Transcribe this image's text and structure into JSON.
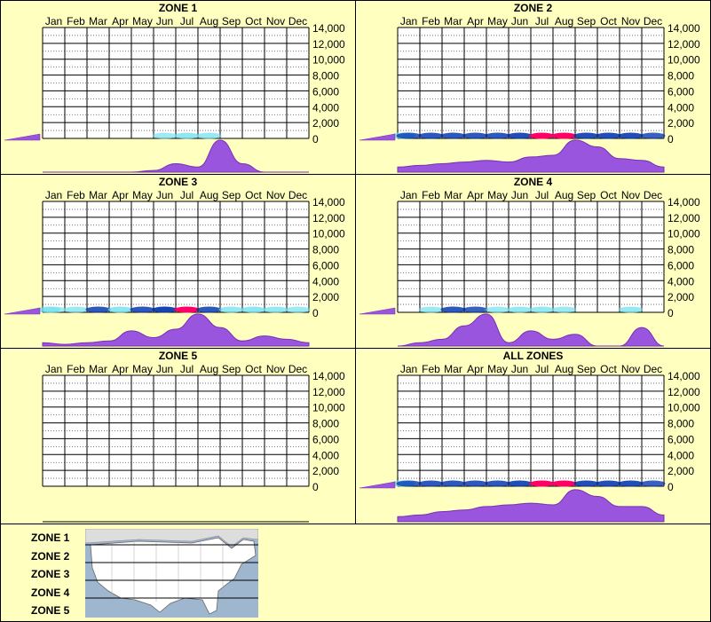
{
  "months": [
    "Jan",
    "Feb",
    "Mar",
    "Apr",
    "May",
    "Jun",
    "Jul",
    "Aug",
    "Sep",
    "Oct",
    "Nov",
    "Dec"
  ],
  "y_ticks": [
    "14,000",
    "12,000",
    "10,000",
    "8,000",
    "6,000",
    "4,000",
    "2,000",
    "0"
  ],
  "colors": {
    "background": "#ffffc0",
    "fill": "#9955dd",
    "edge": "#7a30b0",
    "heat_low": "#66ddee",
    "heat_mid": "#0033aa",
    "heat_high": "#ff0066"
  },
  "zone_labels": [
    "ZONE 1",
    "ZONE 2",
    "ZONE 3",
    "ZONE 4",
    "ZONE 5"
  ],
  "map_icon": "us-map-icon",
  "chart_data": [
    {
      "type": "heatmap",
      "title": "ZONE 1",
      "ylim": [
        0,
        14000
      ],
      "y_ticks": [
        0,
        2000,
        4000,
        6000,
        8000,
        10000,
        12000,
        14000
      ],
      "elevation_profile": [
        0.0,
        1.0
      ],
      "heat": [
        0,
        0,
        0,
        0,
        0,
        0,
        0.15,
        0.35,
        0.25,
        0,
        0,
        0,
        0
      ],
      "monthly_distribution": [
        0,
        0,
        0,
        0,
        0,
        0.05,
        0.25,
        0.15,
        0.95,
        0.25,
        0,
        0,
        0
      ]
    },
    {
      "type": "heatmap",
      "title": "ZONE 2",
      "ylim": [
        0,
        14000
      ],
      "y_ticks": [
        0,
        2000,
        4000,
        6000,
        8000,
        10000,
        12000,
        14000
      ],
      "elevation_profile": [
        0.0,
        1.0
      ],
      "heat": [
        0.4,
        0.5,
        0.6,
        0.6,
        0.6,
        0.6,
        0.7,
        1.0,
        1.0,
        0.7,
        0.7,
        0.7,
        0.5
      ],
      "monthly_distribution": [
        0.15,
        0.2,
        0.25,
        0.3,
        0.35,
        0.3,
        0.45,
        0.5,
        0.95,
        0.75,
        0.4,
        0.35,
        0.15
      ]
    },
    {
      "type": "heatmap",
      "title": "ZONE 3",
      "ylim": [
        0,
        14000
      ],
      "y_ticks": [
        0,
        2000,
        4000,
        6000,
        8000,
        10000,
        12000,
        14000
      ],
      "elevation_profile": [
        0.0,
        1.0
      ],
      "heat": [
        0.1,
        0.1,
        0.2,
        0.6,
        0.4,
        0.6,
        0.8,
        1.0,
        0.6,
        0.3,
        0.4,
        0.3,
        0.2
      ],
      "monthly_distribution": [
        0.1,
        0.05,
        0.1,
        0.15,
        0.45,
        0.25,
        0.5,
        0.95,
        0.55,
        0.15,
        0.3,
        0.2,
        0.1
      ]
    },
    {
      "type": "heatmap",
      "title": "ZONE 4",
      "ylim": [
        0,
        14000
      ],
      "y_ticks": [
        0,
        2000,
        4000,
        6000,
        8000,
        10000,
        12000,
        14000
      ],
      "elevation_profile": [
        0.0,
        1.0
      ],
      "heat": [
        0,
        0,
        0.2,
        0.6,
        0.5,
        0.2,
        0.3,
        0.3,
        0.2,
        0,
        0,
        0.3,
        0
      ],
      "monthly_distribution": [
        0,
        0.1,
        0.2,
        0.6,
        0.95,
        0.1,
        0.45,
        0.2,
        0.35,
        0,
        0,
        0.55,
        0
      ]
    },
    {
      "type": "heatmap",
      "title": "ZONE 5",
      "ylim": [
        0,
        14000
      ],
      "y_ticks": [
        0,
        2000,
        4000,
        6000,
        8000,
        10000,
        12000,
        14000
      ],
      "elevation_profile": [],
      "heat": [],
      "monthly_distribution": []
    },
    {
      "type": "heatmap",
      "title": "ALL ZONES",
      "ylim": [
        0,
        14000
      ],
      "y_ticks": [
        0,
        2000,
        4000,
        6000,
        8000,
        10000,
        12000,
        14000
      ],
      "elevation_profile": [
        0.0,
        1.0
      ],
      "heat": [
        0.4,
        0.5,
        0.6,
        0.6,
        0.6,
        0.6,
        0.7,
        1.0,
        1.0,
        0.7,
        0.7,
        0.7,
        0.5
      ],
      "monthly_distribution": [
        0.15,
        0.2,
        0.3,
        0.35,
        0.45,
        0.5,
        0.55,
        0.5,
        0.95,
        0.75,
        0.45,
        0.45,
        0.2
      ]
    }
  ]
}
